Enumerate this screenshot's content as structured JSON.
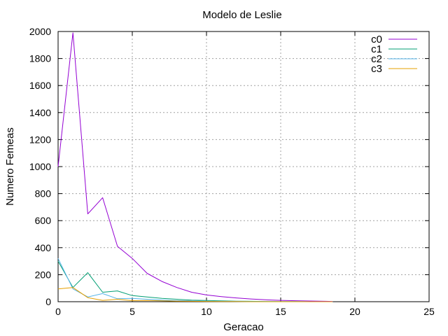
{
  "chart_data": {
    "type": "line",
    "title": "Modelo de Leslie",
    "xlabel": "Geracao",
    "ylabel": "Numero Femeas",
    "xlim": [
      0,
      25
    ],
    "ylim": [
      0,
      2000
    ],
    "xticks": [
      0,
      5,
      10,
      15,
      20,
      25
    ],
    "yticks": [
      0,
      200,
      400,
      600,
      800,
      1000,
      1200,
      1400,
      1600,
      1800,
      2000
    ],
    "grid": true,
    "legend_position": "top-right",
    "x": [
      0,
      1,
      2,
      3,
      4,
      5,
      6,
      7,
      8,
      9,
      10,
      11,
      12,
      13,
      14,
      15,
      16,
      17,
      18,
      18.5
    ],
    "series": [
      {
        "name": "c0",
        "color": "#9400d3",
        "values": [
          1000,
          1990,
          650,
          770,
          410,
          320,
          210,
          150,
          105,
          70,
          50,
          38,
          28,
          20,
          14,
          10,
          7,
          5,
          3,
          2
        ]
      },
      {
        "name": "c1",
        "color": "#009e73",
        "values": [
          300,
          105,
          215,
          70,
          80,
          45,
          35,
          25,
          18,
          12,
          9,
          6,
          4,
          3,
          2,
          1,
          1,
          0,
          0,
          0
        ]
      },
      {
        "name": "c2",
        "color": "#56b4e9",
        "values": [
          320,
          95,
          35,
          60,
          22,
          25,
          18,
          12,
          8,
          6,
          4,
          3,
          2,
          1,
          1,
          0,
          0,
          0,
          0,
          0
        ]
      },
      {
        "name": "c3",
        "color": "#e69f00",
        "values": [
          95,
          105,
          30,
          10,
          18,
          8,
          9,
          6,
          4,
          3,
          2,
          1,
          1,
          0,
          0,
          0,
          0,
          0,
          0,
          0
        ]
      }
    ]
  }
}
